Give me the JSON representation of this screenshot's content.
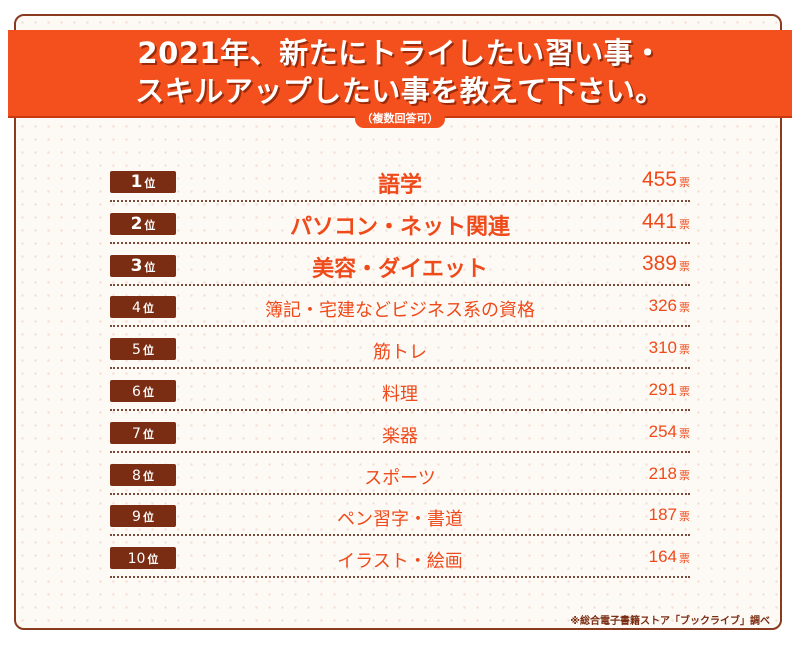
{
  "header": {
    "title_line1": "2021年、新たにトライしたい習い事・",
    "title_line2": "スキルアップしたい事を教えて下さい。",
    "note": "（複数回答可）"
  },
  "units": {
    "rank": "位",
    "votes": "票"
  },
  "source": "※総合電子書籍ストア「ブックライブ」調べ",
  "colors": {
    "accent": "#f4501e",
    "rank_bg": "#7a2d12",
    "text": "#ef4a1a"
  },
  "chart_data": {
    "type": "table",
    "categories": [
      "語学",
      "パソコン・ネット関連",
      "美容・ダイエット",
      "簿記・宅建などビジネス系の資格",
      "筋トレ",
      "料理",
      "楽器",
      "スポーツ",
      "ペン習字・書道",
      "イラスト・絵画"
    ],
    "values": [
      455,
      441,
      389,
      326,
      310,
      291,
      254,
      218,
      187,
      164
    ],
    "ranks": [
      "1",
      "2",
      "3",
      "4",
      "5",
      "6",
      "7",
      "8",
      "9",
      "10"
    ]
  }
}
